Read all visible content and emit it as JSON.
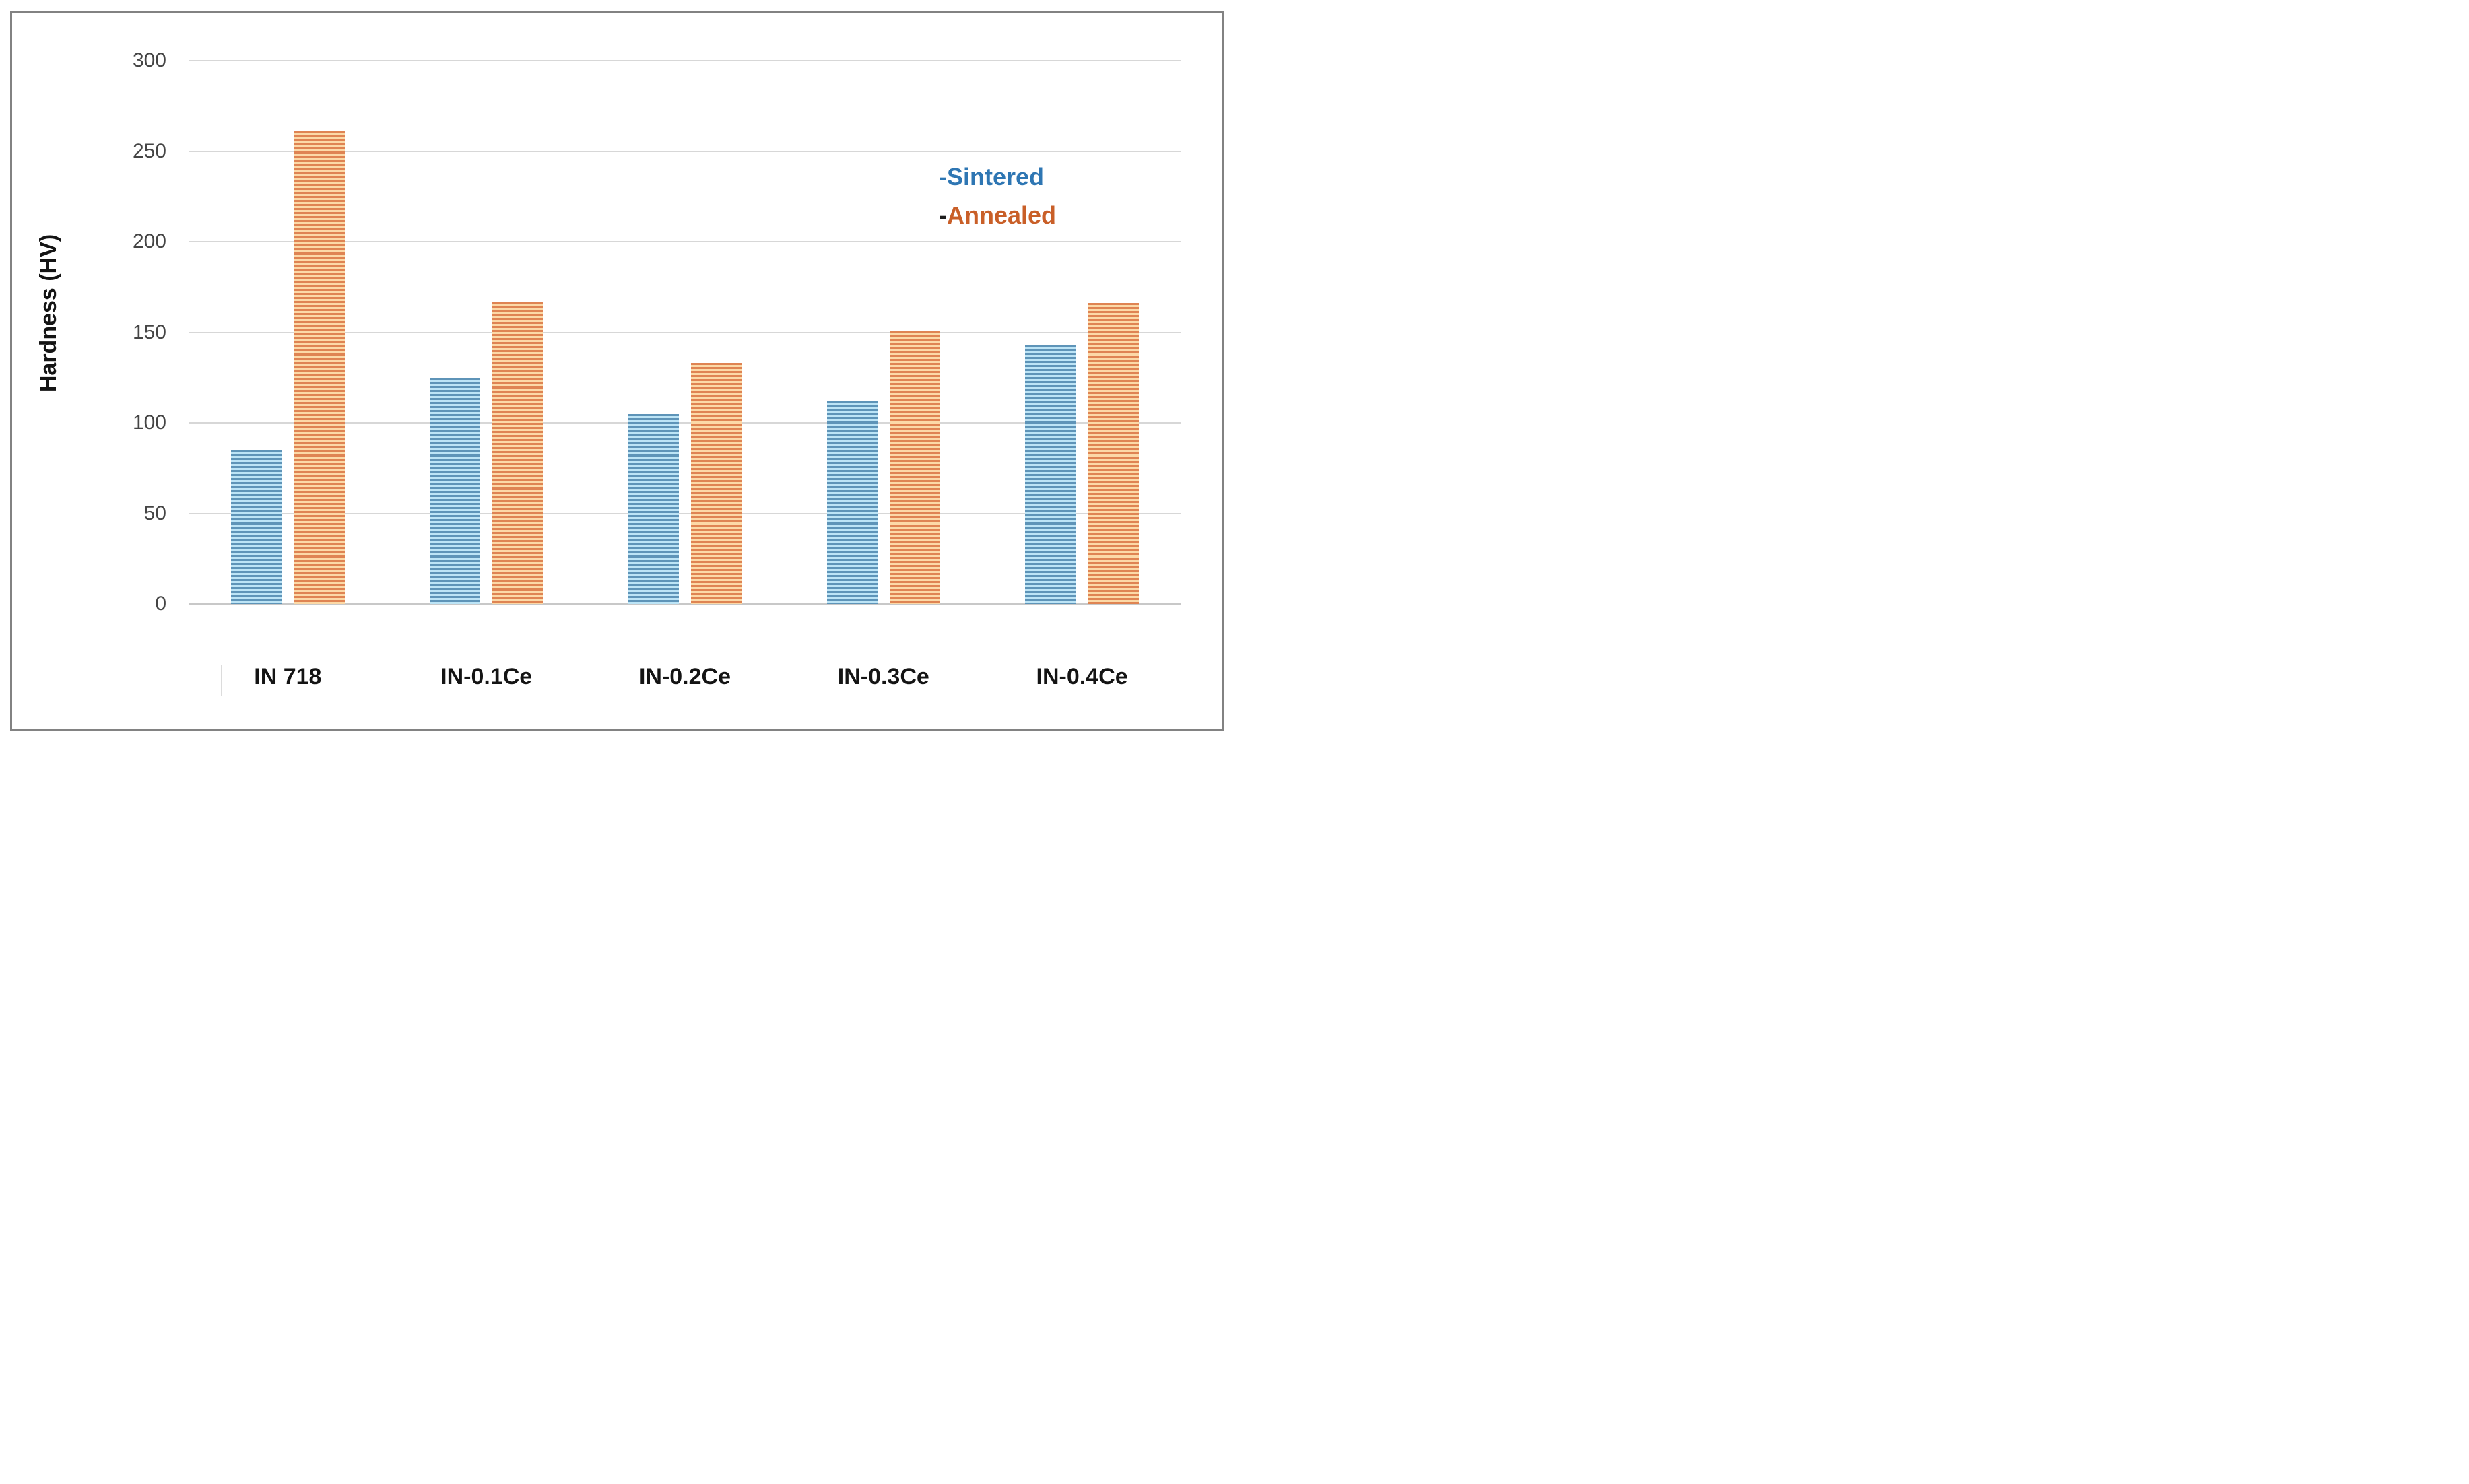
{
  "chart_data": {
    "type": "bar",
    "title": "",
    "categories": [
      "IN 718",
      "IN-0.1Ce",
      "IN-0.2Ce",
      "IN-0.3Ce",
      "IN-0.4Ce"
    ],
    "series": [
      {
        "name": "Sintered",
        "values": [
          85,
          125,
          105,
          112,
          143
        ],
        "stripe_dark": "#5E94B8",
        "stripe_light": "#BCE4F6"
      },
      {
        "name": "Annealed",
        "values": [
          261,
          167,
          133,
          151,
          166
        ],
        "stripe_dark": "#DF8453",
        "stripe_light": "#FCD9A7"
      }
    ],
    "ylabel": "Hardness (HV)",
    "xlabel": "",
    "ylim": [
      0,
      300
    ],
    "yticks": [
      0,
      50,
      100,
      150,
      200,
      250,
      300
    ],
    "grid": true,
    "legend_position": "upper right"
  },
  "legend": {
    "items": [
      {
        "dash": "-",
        "label": "Sintered",
        "dash_color": "#2E76B3",
        "text_color": "#2E76B3"
      },
      {
        "dash": "-",
        "label": "Annealed",
        "dash_color": "#1D1D1D",
        "text_color": "#C95F28"
      }
    ]
  },
  "colors": {
    "frame_border": "#828282",
    "gridline": "#D7D7D7",
    "zero_line": "#C8C8C8",
    "ytick_label": "#454545",
    "category_label": "#141414",
    "background": "#FFFFFF"
  }
}
